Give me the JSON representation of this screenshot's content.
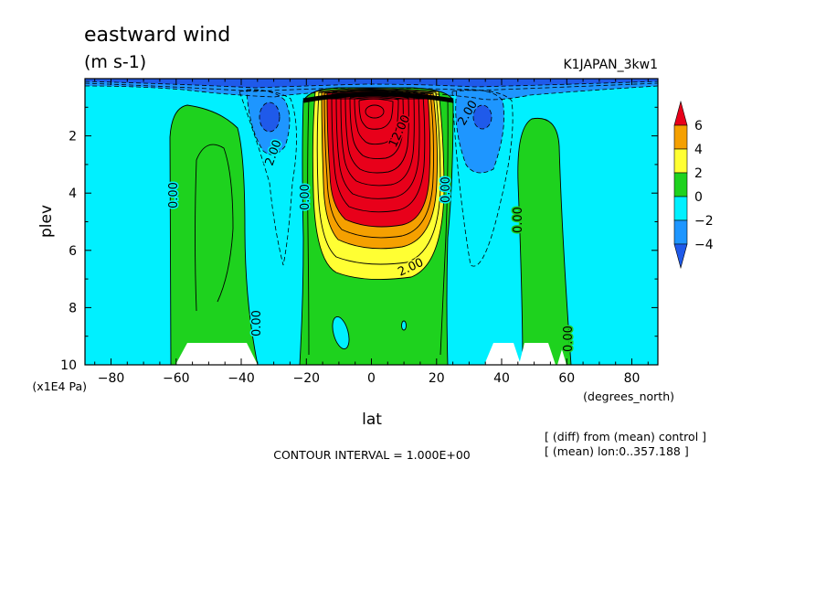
{
  "header": {
    "title": "eastward wind",
    "units": "(m s-1)",
    "run_name": "K1JAPAN_3kw1"
  },
  "footer": {
    "contour_interval": "CONTOUR INTERVAL = 1.000E+00",
    "note_diff": "[ (diff) from (mean) control ]",
    "note_mean": "[ (mean) lon:0..357.188 ]"
  },
  "chart_data": {
    "type": "heatmap",
    "title": "eastward wind",
    "units": "(m s-1)",
    "xlabel": "lat",
    "xunits": "(degrees_north)",
    "ylabel": "plev",
    "yunits": "(x1E4 Pa)",
    "xlim": [
      -88,
      88
    ],
    "ylim": [
      10,
      0
    ],
    "y_inverted": true,
    "xticks": [
      -80,
      -60,
      -40,
      -20,
      0,
      20,
      40,
      60,
      80
    ],
    "yticks": [
      2,
      4,
      6,
      8,
      10
    ],
    "contour_interval": 1.0,
    "contour_labels": [
      "0.00",
      "2.00",
      "12.00"
    ],
    "colorbar": {
      "ticks": [
        6,
        4,
        2,
        0,
        -2,
        -4
      ],
      "levels": [
        {
          "range": "> 6",
          "color": "#e8001a"
        },
        {
          "range": "4 to 6",
          "color": "#f5a000"
        },
        {
          "range": "2 to 4",
          "color": "#ffff33"
        },
        {
          "range": "0 to 2",
          "color": "#1ed21e"
        },
        {
          "range": "-2 to 0",
          "color": "#00f0ff"
        },
        {
          "range": "-4 to -2",
          "color": "#1e96ff"
        },
        {
          "range": "< -4",
          "color": "#1f5aea"
        }
      ]
    },
    "features": [
      {
        "name": "equatorial westerly jet",
        "lat_range": [
          -22,
          22
        ],
        "plev_range": [
          0.6,
          9.3
        ],
        "max_approx": 13
      },
      {
        "name": "southern westerly band",
        "lat_range": [
          -62,
          -38
        ],
        "plev_range": [
          1.0,
          10
        ]
      },
      {
        "name": "northern westerly band",
        "lat_range": [
          45,
          60
        ],
        "plev_range": [
          1.3,
          10
        ]
      },
      {
        "name": "southern easterly minimum",
        "lat": -32,
        "plev": 1.5,
        "value_approx": -4.5
      },
      {
        "name": "northern easterly minimum",
        "lat": 33,
        "plev": 1.5,
        "value_approx": -4.5
      }
    ]
  }
}
